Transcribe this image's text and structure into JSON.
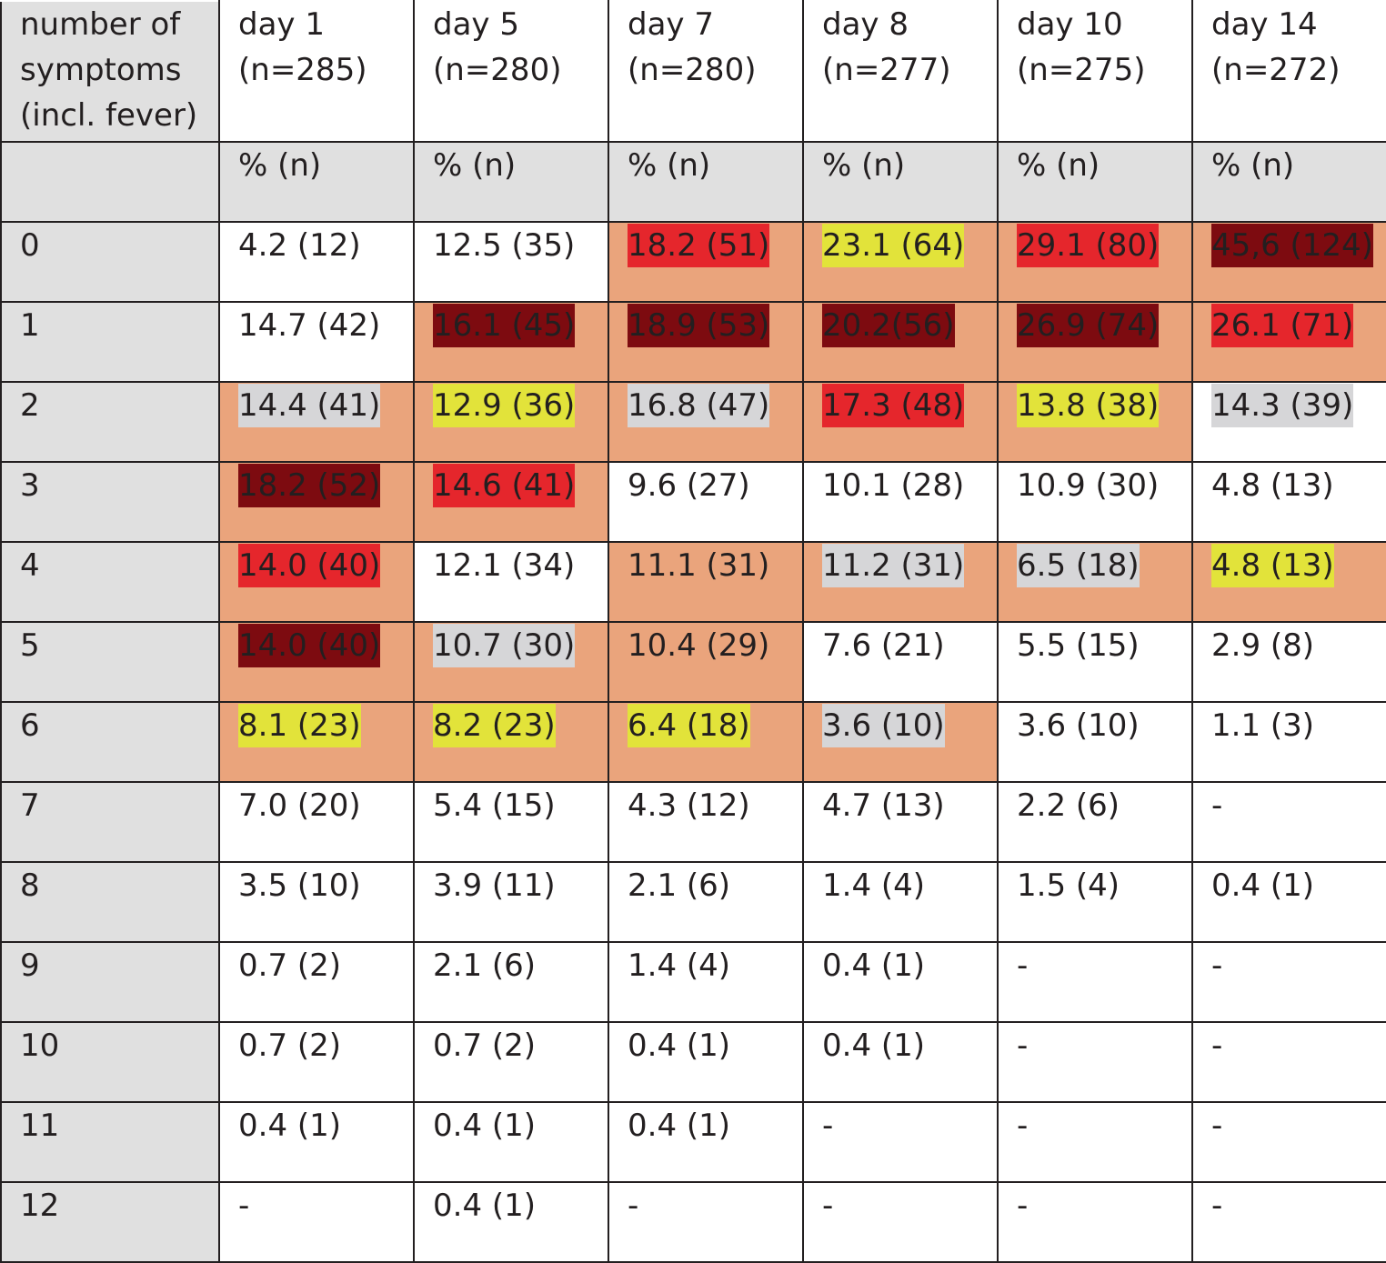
{
  "header": {
    "first_lines": [
      "number of",
      "symptoms",
      "(incl. fever)"
    ],
    "days": [
      {
        "label": "day 1",
        "n": "(n=285)"
      },
      {
        "label": "day 5",
        "n": "(n=280)"
      },
      {
        "label": "day 7",
        "n": "(n=280)"
      },
      {
        "label": "day 8",
        "n": "(n=277)"
      },
      {
        "label": "day 10",
        "n": "(n=275)"
      },
      {
        "label": "day 14",
        "n": "(n=272)"
      }
    ],
    "unit_label": "% (n)"
  },
  "highlight_colors": {
    "cell_background": "#eaa47c",
    "yellow": "#e2e33a",
    "red": "#e5262c",
    "dark_red": "#7d0b10",
    "grey": "#d6d6d8"
  },
  "rows": [
    {
      "count": "0",
      "cells": [
        {
          "text": "4.2 (12)",
          "bg": false,
          "mark": ""
        },
        {
          "text": "12.5 (35)",
          "bg": false,
          "mark": ""
        },
        {
          "text": "18.2 (51)",
          "bg": true,
          "mark": "red"
        },
        {
          "text": "23.1 (64)",
          "bg": true,
          "mark": "yellow"
        },
        {
          "text": "29.1 (80)",
          "bg": true,
          "mark": "red"
        },
        {
          "text": "45,6 (124)",
          "bg": true,
          "mark": "dark"
        }
      ]
    },
    {
      "count": "1",
      "cells": [
        {
          "text": "14.7 (42)",
          "bg": false,
          "mark": ""
        },
        {
          "text": "16.1 (45)",
          "bg": true,
          "mark": "dark"
        },
        {
          "text": "18.9 (53)",
          "bg": true,
          "mark": "dark"
        },
        {
          "text": "20.2(56)",
          "bg": true,
          "mark": "dark"
        },
        {
          "text": "26.9 (74)",
          "bg": true,
          "mark": "dark"
        },
        {
          "text": "26.1 (71)",
          "bg": true,
          "mark": "red"
        }
      ]
    },
    {
      "count": "2",
      "cells": [
        {
          "text": "14.4 (41)",
          "bg": true,
          "mark": "grey"
        },
        {
          "text": "12.9 (36)",
          "bg": true,
          "mark": "yellow"
        },
        {
          "text": "16.8 (47)",
          "bg": true,
          "mark": "grey"
        },
        {
          "text": "17.3 (48)",
          "bg": true,
          "mark": "red"
        },
        {
          "text": "13.8 (38)",
          "bg": true,
          "mark": "yellow"
        },
        {
          "text": "14.3 (39)",
          "bg": false,
          "mark": "grey"
        }
      ]
    },
    {
      "count": "3",
      "cells": [
        {
          "text": "18.2 (52)",
          "bg": true,
          "mark": "dark"
        },
        {
          "text": "14.6 (41)",
          "bg": true,
          "mark": "red"
        },
        {
          "text": "9.6 (27)",
          "bg": false,
          "mark": ""
        },
        {
          "text": "10.1 (28)",
          "bg": false,
          "mark": ""
        },
        {
          "text": "10.9 (30)",
          "bg": false,
          "mark": ""
        },
        {
          "text": "4.8 (13)",
          "bg": false,
          "mark": ""
        }
      ]
    },
    {
      "count": "4",
      "cells": [
        {
          "text": "14.0 (40)",
          "bg": true,
          "mark": "red"
        },
        {
          "text": "12.1 (34)",
          "bg": false,
          "mark": ""
        },
        {
          "text": "11.1 (31)",
          "bg": true,
          "mark": ""
        },
        {
          "text": "11.2 (31)",
          "bg": true,
          "mark": "grey"
        },
        {
          "text": "6.5 (18)",
          "bg": true,
          "mark": "grey"
        },
        {
          "text": "4.8 (13)",
          "bg": true,
          "mark": "yellow"
        }
      ]
    },
    {
      "count": "5",
      "cells": [
        {
          "text": "14.0 (40)",
          "bg": true,
          "mark": "dark"
        },
        {
          "text": "10.7 (30)",
          "bg": true,
          "mark": "grey"
        },
        {
          "text": "10.4 (29)",
          "bg": true,
          "mark": ""
        },
        {
          "text": "7.6 (21)",
          "bg": false,
          "mark": ""
        },
        {
          "text": "5.5 (15)",
          "bg": false,
          "mark": ""
        },
        {
          "text": "2.9 (8)",
          "bg": false,
          "mark": ""
        }
      ]
    },
    {
      "count": "6",
      "cells": [
        {
          "text": "8.1 (23)",
          "bg": true,
          "mark": "yellow"
        },
        {
          "text": "8.2 (23)",
          "bg": true,
          "mark": "yellow"
        },
        {
          "text": "6.4 (18)",
          "bg": true,
          "mark": "yellow"
        },
        {
          "text": "3.6 (10)",
          "bg": true,
          "mark": "grey"
        },
        {
          "text": "3.6 (10)",
          "bg": false,
          "mark": ""
        },
        {
          "text": "1.1 (3)",
          "bg": false,
          "mark": ""
        }
      ]
    },
    {
      "count": "7",
      "cells": [
        {
          "text": "7.0 (20)",
          "bg": false,
          "mark": ""
        },
        {
          "text": "5.4 (15)",
          "bg": false,
          "mark": ""
        },
        {
          "text": "4.3 (12)",
          "bg": false,
          "mark": ""
        },
        {
          "text": "4.7 (13)",
          "bg": false,
          "mark": ""
        },
        {
          "text": "2.2 (6)",
          "bg": false,
          "mark": ""
        },
        {
          "text": "-",
          "bg": false,
          "mark": ""
        }
      ]
    },
    {
      "count": "8",
      "cells": [
        {
          "text": "3.5 (10)",
          "bg": false,
          "mark": ""
        },
        {
          "text": "3.9 (11)",
          "bg": false,
          "mark": ""
        },
        {
          "text": "2.1 (6)",
          "bg": false,
          "mark": ""
        },
        {
          "text": "1.4 (4)",
          "bg": false,
          "mark": ""
        },
        {
          "text": "1.5 (4)",
          "bg": false,
          "mark": ""
        },
        {
          "text": "0.4 (1)",
          "bg": false,
          "mark": ""
        }
      ]
    },
    {
      "count": "9",
      "cells": [
        {
          "text": "0.7 (2)",
          "bg": false,
          "mark": ""
        },
        {
          "text": "2.1 (6)",
          "bg": false,
          "mark": ""
        },
        {
          "text": "1.4 (4)",
          "bg": false,
          "mark": ""
        },
        {
          "text": "0.4 (1)",
          "bg": false,
          "mark": ""
        },
        {
          "text": "-",
          "bg": false,
          "mark": ""
        },
        {
          "text": "-",
          "bg": false,
          "mark": ""
        }
      ]
    },
    {
      "count": "10",
      "cells": [
        {
          "text": "0.7 (2)",
          "bg": false,
          "mark": ""
        },
        {
          "text": "0.7 (2)",
          "bg": false,
          "mark": ""
        },
        {
          "text": "0.4 (1)",
          "bg": false,
          "mark": ""
        },
        {
          "text": "0.4 (1)",
          "bg": false,
          "mark": ""
        },
        {
          "text": "-",
          "bg": false,
          "mark": ""
        },
        {
          "text": "-",
          "bg": false,
          "mark": ""
        }
      ]
    },
    {
      "count": "11",
      "cells": [
        {
          "text": "0.4 (1)",
          "bg": false,
          "mark": ""
        },
        {
          "text": "0.4 (1)",
          "bg": false,
          "mark": ""
        },
        {
          "text": "0.4 (1)",
          "bg": false,
          "mark": ""
        },
        {
          "text": "-",
          "bg": false,
          "mark": ""
        },
        {
          "text": "-",
          "bg": false,
          "mark": ""
        },
        {
          "text": "-",
          "bg": false,
          "mark": ""
        }
      ]
    },
    {
      "count": "12",
      "cells": [
        {
          "text": "-",
          "bg": false,
          "mark": ""
        },
        {
          "text": "0.4 (1)",
          "bg": false,
          "mark": ""
        },
        {
          "text": "-",
          "bg": false,
          "mark": ""
        },
        {
          "text": "-",
          "bg": false,
          "mark": ""
        },
        {
          "text": "-",
          "bg": false,
          "mark": ""
        },
        {
          "text": "-",
          "bg": false,
          "mark": ""
        }
      ]
    }
  ]
}
